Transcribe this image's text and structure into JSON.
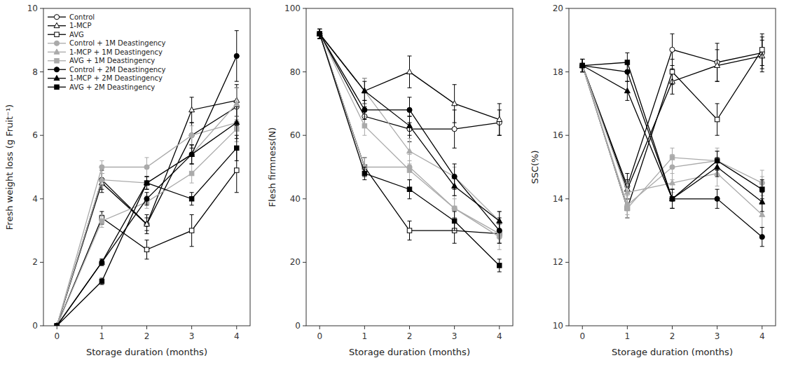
{
  "chart_data": [
    {
      "type": "line",
      "x": [
        0,
        1,
        2,
        3,
        4
      ],
      "xlabel": "Storage duration (months)",
      "ylabel": "Fresh weight loss (g Fruit⁻¹)",
      "xlim": [
        -0.3,
        4.3
      ],
      "xticks": [
        0,
        1,
        2,
        3,
        4
      ],
      "ylim": [
        0,
        10
      ],
      "yticks": [
        0,
        2,
        4,
        6,
        8,
        10
      ],
      "grid": false,
      "legend": "upper left",
      "series": [
        {
          "name": "Control",
          "color": "black",
          "marker": "circle-open",
          "values": [
            0,
            4.6,
            3.2,
            6.0,
            6.9
          ],
          "errors": [
            0,
            0.3,
            0.3,
            0.4,
            0.6
          ]
        },
        {
          "name": "1-MCP",
          "color": "black",
          "marker": "triangle-open",
          "values": [
            0,
            4.5,
            3.2,
            6.8,
            7.1
          ],
          "errors": [
            0,
            0.3,
            0.2,
            0.4,
            0.5
          ]
        },
        {
          "name": "AVG",
          "color": "black",
          "marker": "square-open",
          "values": [
            0,
            3.4,
            2.4,
            3.0,
            4.9
          ],
          "errors": [
            0,
            0.2,
            0.3,
            0.5,
            0.7
          ]
        },
        {
          "name": "Control + 1M Deastingency",
          "color": "#aaaaaa",
          "marker": "circle",
          "values": [
            0,
            5.0,
            5.0,
            6.0,
            6.4
          ],
          "errors": [
            0,
            0.2,
            0.3,
            0.3,
            0.6
          ]
        },
        {
          "name": "1-MCP + 1M Deastingency",
          "color": "#aaaaaa",
          "marker": "triangle",
          "values": [
            0,
            4.6,
            4.5,
            5.4,
            7.0
          ],
          "errors": [
            0,
            0.2,
            0.2,
            0.3,
            0.5
          ]
        },
        {
          "name": "AVG + 1M Deastingency",
          "color": "#aaaaaa",
          "marker": "square",
          "values": [
            0,
            3.3,
            3.9,
            4.8,
            6.2
          ],
          "errors": [
            0,
            0.2,
            0.2,
            0.3,
            0.4
          ]
        },
        {
          "name": "Control + 2M Deastingency",
          "color": "black",
          "marker": "circle",
          "values": [
            0,
            2.0,
            4.0,
            5.4,
            8.5
          ],
          "errors": [
            0,
            0.1,
            0.2,
            0.3,
            0.8
          ]
        },
        {
          "name": "1-MCP + 2M Deastingency",
          "color": "black",
          "marker": "triangle",
          "values": [
            0,
            2.0,
            4.5,
            5.4,
            6.4
          ],
          "errors": [
            0,
            0.1,
            0.2,
            0.3,
            0.5
          ]
        },
        {
          "name": "AVG + 2M Deastingency",
          "color": "black",
          "marker": "square",
          "values": [
            0,
            1.4,
            4.5,
            4.0,
            5.6
          ],
          "errors": [
            0,
            0.1,
            0.2,
            0.2,
            0.4
          ]
        }
      ]
    },
    {
      "type": "line",
      "x": [
        0,
        1,
        2,
        3,
        4
      ],
      "xlabel": "Storage duration (months)",
      "ylabel": "Flesh firmness(N)",
      "xlim": [
        -0.3,
        4.3
      ],
      "xticks": [
        0,
        1,
        2,
        3,
        4
      ],
      "ylim": [
        0,
        100
      ],
      "yticks": [
        0,
        20,
        40,
        60,
        80,
        100
      ],
      "grid": false,
      "series": [
        {
          "color": "black",
          "marker": "circle-open",
          "values": [
            92,
            66,
            62,
            62,
            64
          ],
          "errors": [
            1.5,
            3,
            4,
            6,
            4
          ]
        },
        {
          "color": "black",
          "marker": "triangle-open",
          "values": [
            92,
            74,
            80,
            70,
            65
          ],
          "errors": [
            1.5,
            4,
            5,
            6,
            5
          ]
        },
        {
          "color": "black",
          "marker": "square-open",
          "values": [
            92,
            50,
            30,
            30,
            29
          ],
          "errors": [
            1.5,
            3,
            3,
            4,
            3
          ]
        },
        {
          "color": "#aaaaaa",
          "marker": "circle",
          "values": [
            92,
            50,
            50,
            37,
            28
          ],
          "errors": [
            1.5,
            3,
            4,
            4,
            4
          ]
        },
        {
          "color": "#aaaaaa",
          "marker": "triangle",
          "values": [
            92,
            74,
            55,
            47,
            33
          ],
          "errors": [
            1.5,
            4,
            4,
            3,
            3
          ]
        },
        {
          "color": "#aaaaaa",
          "marker": "square",
          "values": [
            92,
            63,
            49,
            37,
            29
          ],
          "errors": [
            1.5,
            3,
            3,
            3,
            3
          ]
        },
        {
          "color": "black",
          "marker": "circle",
          "values": [
            92,
            68,
            68,
            47,
            30
          ],
          "errors": [
            1.5,
            3,
            4,
            4,
            4
          ]
        },
        {
          "color": "black",
          "marker": "triangle",
          "values": [
            92,
            74,
            63,
            44,
            33
          ],
          "errors": [
            1.5,
            3,
            3,
            3,
            3
          ]
        },
        {
          "color": "black",
          "marker": "square",
          "values": [
            92,
            48,
            43,
            33,
            19
          ],
          "errors": [
            1.5,
            2,
            3,
            3,
            2
          ]
        }
      ]
    },
    {
      "type": "line",
      "x": [
        0,
        1,
        2,
        3,
        4
      ],
      "xlabel": "Storage duration (months)",
      "ylabel": "SSC(%)",
      "xlim": [
        -0.3,
        4.3
      ],
      "xticks": [
        0,
        1,
        2,
        3,
        4
      ],
      "ylim": [
        10,
        20
      ],
      "yticks": [
        10,
        12,
        14,
        16,
        18,
        20
      ],
      "grid": false,
      "series": [
        {
          "color": "black",
          "marker": "circle-open",
          "values": [
            18.2,
            14.4,
            18.7,
            18.3,
            18.6
          ],
          "errors": [
            0.2,
            0.4,
            0.5,
            0.6,
            0.5
          ]
        },
        {
          "color": "black",
          "marker": "triangle-open",
          "values": [
            18.2,
            14.3,
            17.7,
            18.2,
            18.5
          ],
          "errors": [
            0.2,
            0.3,
            0.4,
            0.5,
            0.5
          ]
        },
        {
          "color": "black",
          "marker": "square-open",
          "values": [
            18.2,
            13.7,
            18.0,
            16.5,
            18.7
          ],
          "errors": [
            0.2,
            0.3,
            0.4,
            0.5,
            0.5
          ]
        },
        {
          "color": "#aaaaaa",
          "marker": "circle",
          "values": [
            18.2,
            13.8,
            15.0,
            15.2,
            14.5
          ],
          "errors": [
            0.2,
            0.3,
            0.4,
            0.4,
            0.4
          ]
        },
        {
          "color": "#aaaaaa",
          "marker": "triangle",
          "values": [
            18.2,
            14.2,
            14.5,
            14.8,
            13.5
          ],
          "errors": [
            0.2,
            0.3,
            0.3,
            0.4,
            0.4
          ]
        },
        {
          "color": "#aaaaaa",
          "marker": "square",
          "values": [
            18.2,
            13.7,
            15.3,
            15.2,
            14.3
          ],
          "errors": [
            0.2,
            0.3,
            0.3,
            0.3,
            0.4
          ]
        },
        {
          "color": "black",
          "marker": "circle",
          "values": [
            18.2,
            18.0,
            14.0,
            14.0,
            12.8
          ],
          "errors": [
            0.2,
            0.3,
            0.3,
            0.3,
            0.3
          ]
        },
        {
          "color": "black",
          "marker": "triangle",
          "values": [
            18.2,
            17.4,
            14.0,
            15.0,
            13.9
          ],
          "errors": [
            0.2,
            0.3,
            0.3,
            0.3,
            0.3
          ]
        },
        {
          "color": "black",
          "marker": "square",
          "values": [
            18.2,
            18.3,
            14.0,
            15.2,
            14.3
          ],
          "errors": [
            0.2,
            0.3,
            0.3,
            0.3,
            0.3
          ]
        }
      ]
    }
  ]
}
